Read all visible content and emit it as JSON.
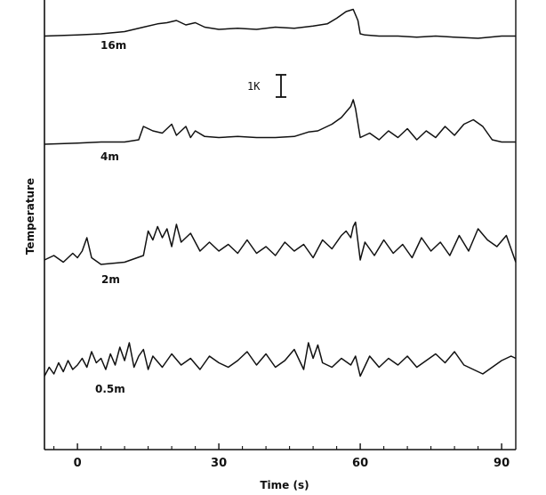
{
  "chart_data": {
    "type": "line",
    "title": "",
    "xlabel": "Time (s)",
    "ylabel": "Temperature",
    "xlim": [
      -7,
      93
    ],
    "xticks": [
      0,
      30,
      60,
      90
    ],
    "grid": false,
    "legend": "none",
    "scale_bar": {
      "label": "1K",
      "value": 1
    },
    "series": [
      {
        "name": "16m",
        "x": [
          -7,
          0,
          5,
          10,
          14,
          17,
          19,
          21,
          23,
          25,
          27,
          30,
          34,
          38,
          42,
          46,
          50,
          53,
          55,
          57,
          58.5,
          59.5,
          60,
          61,
          64,
          68,
          72,
          76,
          80,
          85,
          90,
          93
        ],
        "y": [
          -0.1,
          -0.05,
          0.0,
          0.1,
          0.3,
          0.45,
          0.5,
          0.6,
          0.4,
          0.5,
          0.3,
          0.2,
          0.25,
          0.2,
          0.3,
          0.25,
          0.35,
          0.45,
          0.7,
          1.0,
          1.1,
          0.6,
          0.0,
          -0.05,
          -0.1,
          -0.1,
          -0.15,
          -0.1,
          -0.15,
          -0.2,
          -0.1,
          -0.1
        ]
      },
      {
        "name": "4m",
        "x": [
          -7,
          0,
          5,
          10,
          13,
          14,
          16,
          18,
          20,
          21,
          23,
          24,
          25,
          27,
          30,
          34,
          38,
          42,
          46,
          49,
          51,
          54,
          56,
          58,
          58.5,
          59,
          60,
          62,
          64,
          66,
          68,
          70,
          72,
          74,
          76,
          78,
          80,
          82,
          84,
          86,
          88,
          90,
          93
        ],
        "y": [
          0.0,
          0.05,
          0.1,
          0.1,
          0.2,
          0.8,
          0.6,
          0.5,
          0.9,
          0.4,
          0.8,
          0.3,
          0.6,
          0.35,
          0.3,
          0.35,
          0.3,
          0.3,
          0.35,
          0.55,
          0.6,
          0.9,
          1.2,
          1.7,
          2.0,
          1.6,
          0.3,
          0.5,
          0.2,
          0.6,
          0.3,
          0.7,
          0.2,
          0.6,
          0.3,
          0.8,
          0.4,
          0.9,
          1.1,
          0.8,
          0.2,
          0.1,
          0.1
        ]
      },
      {
        "name": "2m",
        "x": [
          -7,
          -5,
          -3,
          -1,
          0,
          1,
          2,
          3,
          5,
          10,
          14,
          15,
          16,
          17,
          18,
          19,
          20,
          21,
          22,
          24,
          26,
          28,
          30,
          32,
          34,
          36,
          38,
          40,
          42,
          44,
          46,
          48,
          50,
          52,
          54,
          56,
          57,
          58,
          58.5,
          59,
          60,
          61,
          63,
          65,
          67,
          69,
          71,
          73,
          75,
          77,
          79,
          81,
          83,
          85,
          87,
          89,
          91,
          93
        ],
        "y": [
          0.2,
          0.4,
          0.1,
          0.5,
          0.3,
          0.6,
          1.2,
          0.3,
          0.0,
          0.1,
          0.4,
          1.5,
          1.1,
          1.7,
          1.2,
          1.6,
          0.8,
          1.8,
          1.0,
          1.4,
          0.6,
          1.0,
          0.6,
          0.9,
          0.5,
          1.1,
          0.5,
          0.8,
          0.4,
          1.0,
          0.6,
          0.9,
          0.3,
          1.1,
          0.7,
          1.3,
          1.5,
          1.2,
          1.7,
          1.9,
          0.2,
          1.0,
          0.4,
          1.1,
          0.5,
          0.9,
          0.3,
          1.2,
          0.6,
          1.0,
          0.4,
          1.3,
          0.6,
          1.6,
          1.1,
          0.8,
          1.3,
          0.1
        ]
      },
      {
        "name": "0.5m",
        "x": [
          -7,
          -6,
          -5,
          -4,
          -3,
          -2,
          -1,
          0,
          1,
          2,
          3,
          4,
          5,
          6,
          7,
          8,
          9,
          10,
          11,
          12,
          13,
          14,
          15,
          16,
          18,
          20,
          22,
          24,
          26,
          28,
          30,
          32,
          34,
          36,
          38,
          40,
          42,
          44,
          46,
          48,
          49,
          50,
          51,
          52,
          54,
          56,
          58,
          59,
          60,
          62,
          64,
          66,
          68,
          70,
          72,
          74,
          76,
          78,
          80,
          82,
          84,
          86,
          88,
          90,
          92,
          93
        ],
        "y": [
          0.1,
          0.5,
          0.2,
          0.7,
          0.3,
          0.8,
          0.4,
          0.6,
          0.9,
          0.5,
          1.2,
          0.7,
          0.9,
          0.4,
          1.1,
          0.6,
          1.4,
          0.8,
          1.6,
          0.5,
          1.0,
          1.3,
          0.4,
          1.0,
          0.5,
          1.1,
          0.6,
          0.9,
          0.4,
          1.0,
          0.7,
          0.5,
          0.8,
          1.2,
          0.6,
          1.1,
          0.5,
          0.8,
          1.3,
          0.4,
          1.6,
          0.9,
          1.5,
          0.7,
          0.5,
          0.9,
          0.6,
          1.0,
          0.1,
          1.0,
          0.5,
          0.9,
          0.6,
          1.0,
          0.5,
          0.8,
          1.1,
          0.7,
          1.2,
          0.6,
          0.4,
          0.2,
          0.5,
          0.8,
          1.0,
          0.9
        ]
      }
    ]
  }
}
